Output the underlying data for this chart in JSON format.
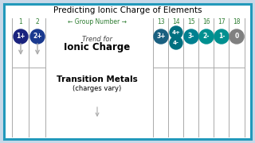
{
  "title": "Predicting Ionic Charge of Elements",
  "bg_color": "#c8d8e8",
  "border_color": "#2299bb",
  "group_label": "← Group Number →",
  "group_numbers_left": [
    "1",
    "2"
  ],
  "group_numbers_right": [
    "13",
    "14",
    "15",
    "16",
    "17",
    "18"
  ],
  "left_charges": [
    "1+",
    "2+"
  ],
  "right_charges": [
    "3+",
    "4+",
    "3-",
    "2-",
    "1-",
    "0"
  ],
  "left_circle_colors": [
    "#1a237e",
    "#1a3a8f"
  ],
  "right_circle_colors": [
    "#1a6080",
    "#007080",
    "#008090",
    "#009090",
    "#009090",
    "#808080"
  ],
  "trend_text1": "Trend for",
  "trend_text2": "Ionic Charge",
  "transition_text1": "Transition Metals",
  "transition_text2": "(charges vary)",
  "arrow_color": "#aaaaaa",
  "col_line_color": "#aaaaaa",
  "group14_extra": "4-",
  "group14_extra_color": "#007080"
}
